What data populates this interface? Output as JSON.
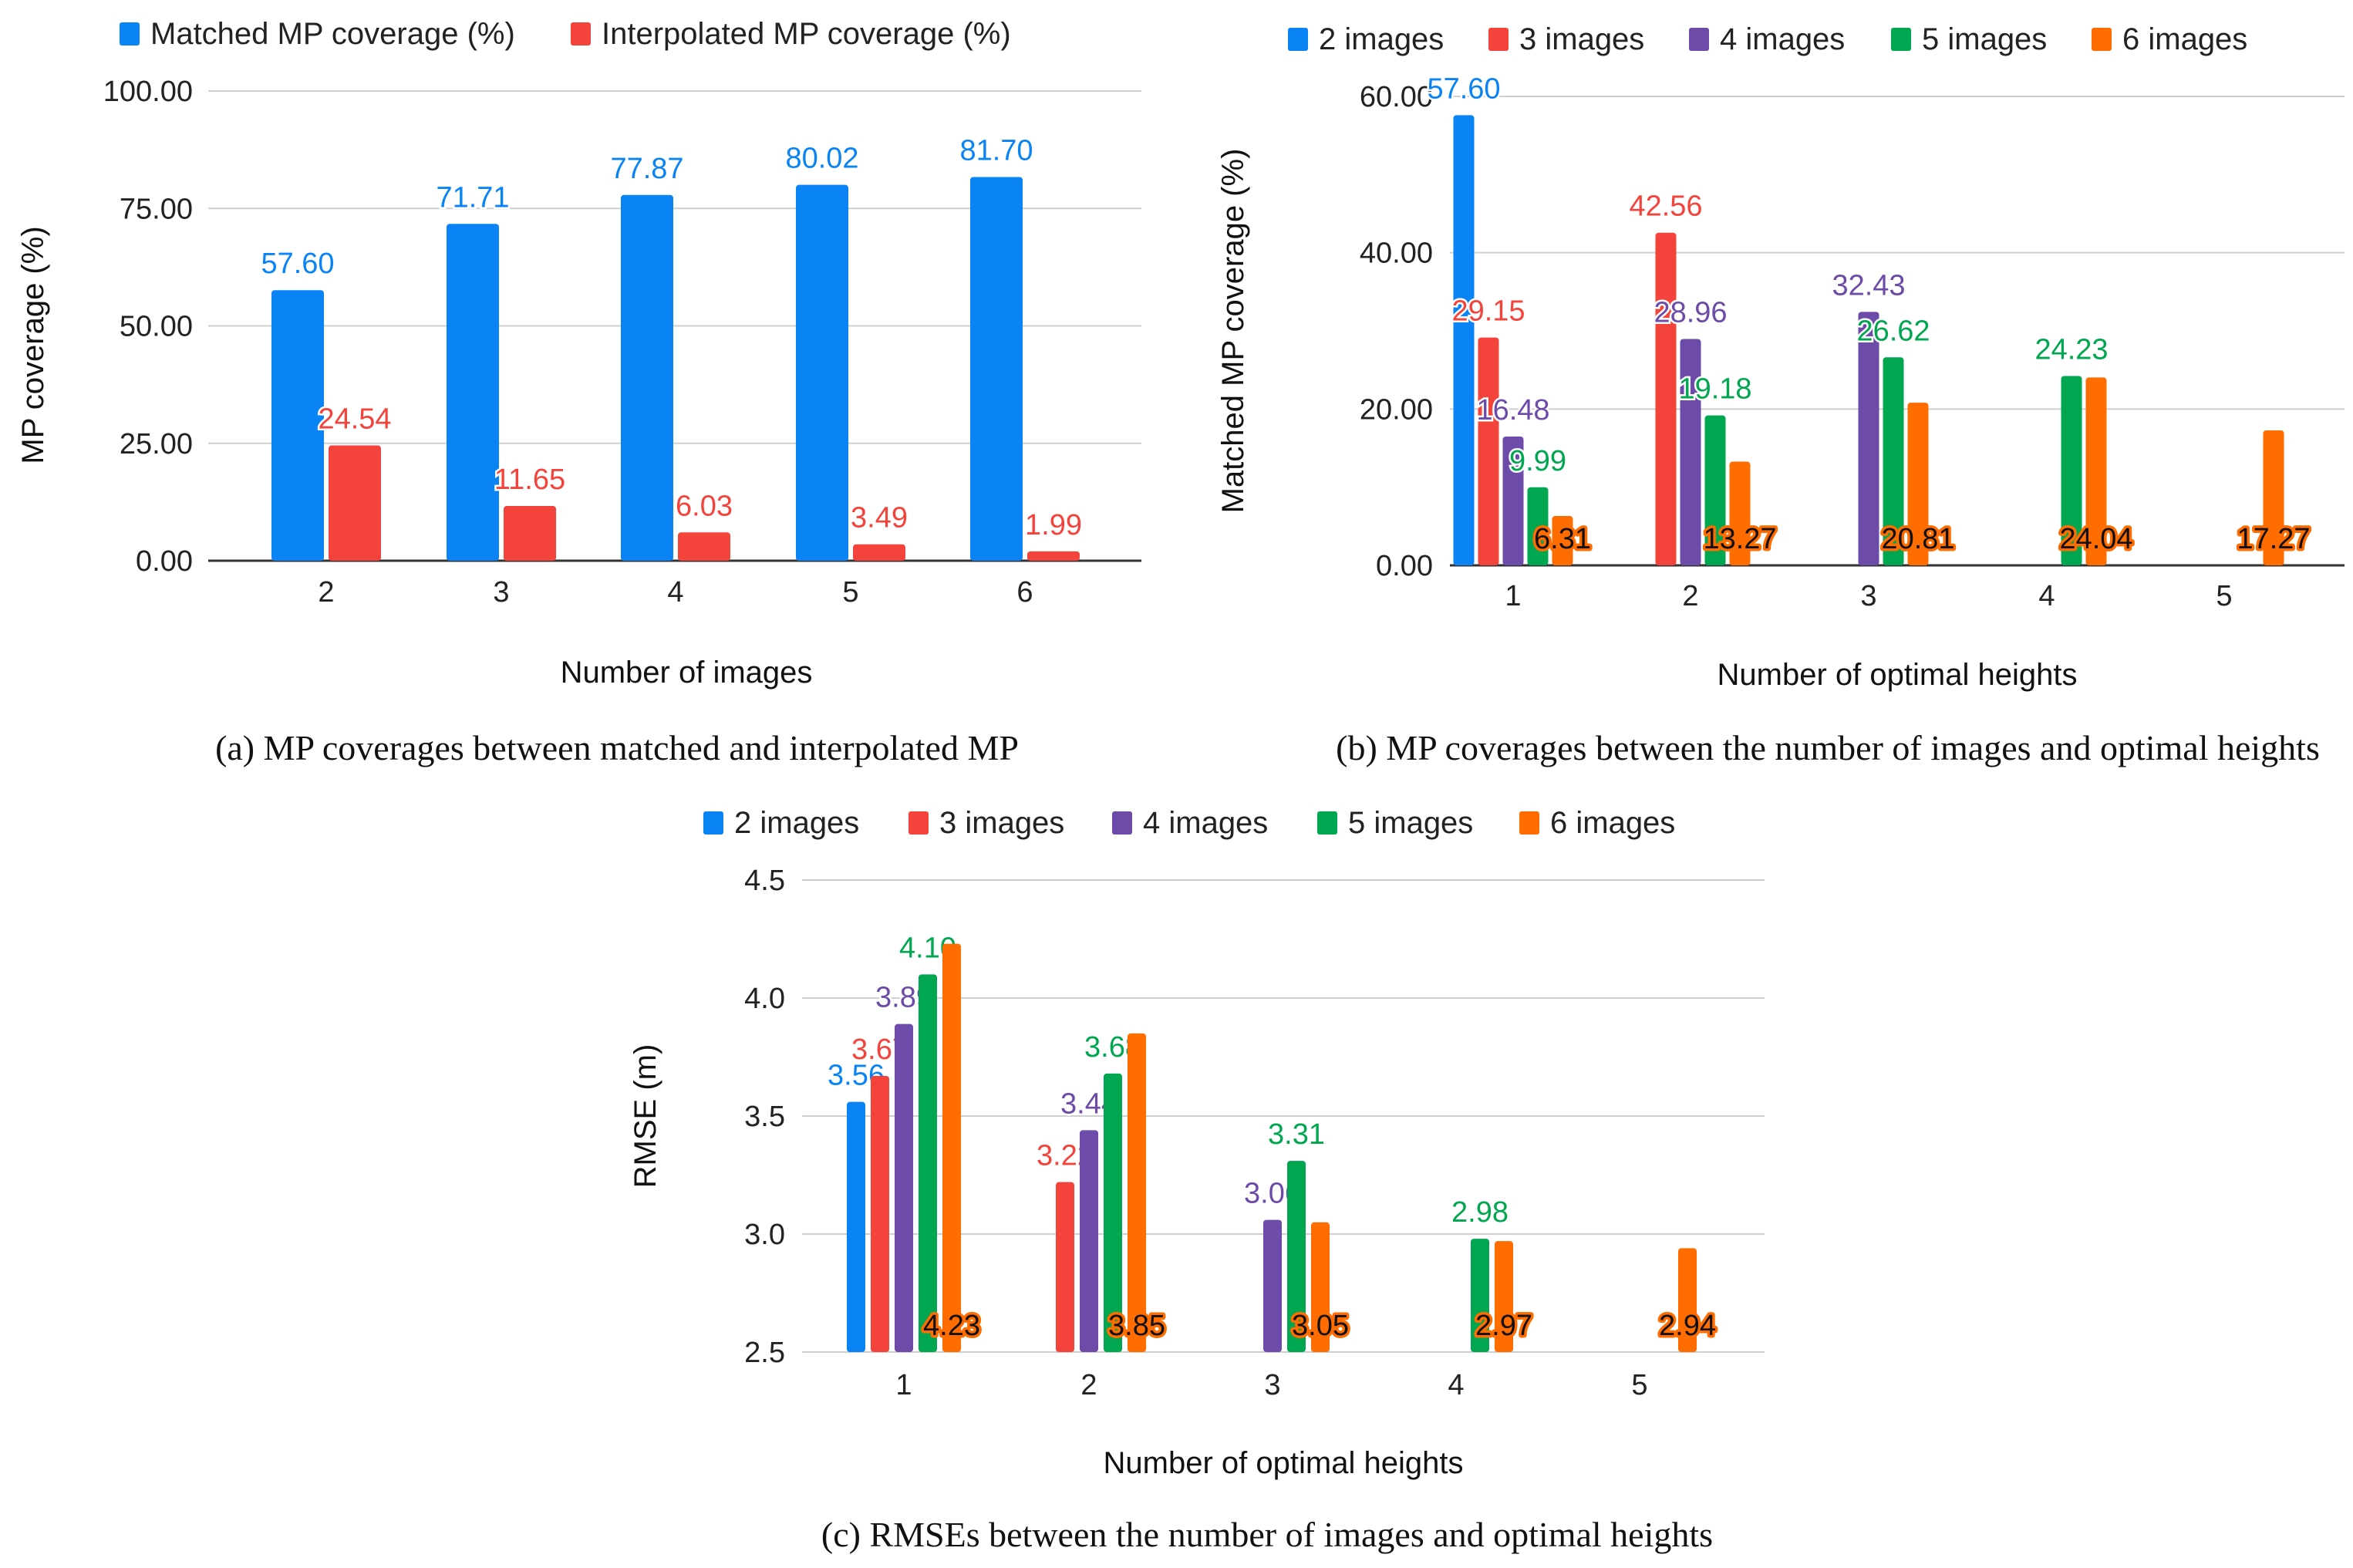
{
  "chart_data": [
    {
      "id": "a",
      "type": "bar",
      "caption": "(a) MP coverages between matched and interpolated MP",
      "xlabel": "Number of images",
      "ylabel": "MP coverage (%)",
      "ylim": [
        0,
        100
      ],
      "yticks": [
        "0.00",
        "25.00",
        "50.00",
        "75.00",
        "100.00"
      ],
      "ytick_values": [
        0,
        25,
        50,
        75,
        100
      ],
      "categories": [
        "2",
        "3",
        "4",
        "5",
        "6"
      ],
      "legend_position": "top-left",
      "grid": true,
      "series": [
        {
          "name": "Matched MP coverage (%)",
          "color": "#0a84f5",
          "values": [
            57.6,
            71.71,
            77.87,
            80.02,
            81.7
          ],
          "labels": [
            "57.60",
            "71.71",
            "77.87",
            "80.02",
            "81.70"
          ]
        },
        {
          "name": "Interpolated MP coverage (%)",
          "color": "#f4433a",
          "values": [
            24.54,
            11.65,
            6.03,
            3.49,
            1.99
          ],
          "labels": [
            "24.54",
            "11.65",
            "6.03",
            "3.49",
            "1.99"
          ]
        }
      ]
    },
    {
      "id": "b",
      "type": "bar",
      "caption": "(b) MP coverages between the number of images and optimal heights",
      "xlabel": "Number of optimal heights",
      "ylabel": "Matched MP coverage (%)",
      "ylim": [
        0,
        60
      ],
      "yticks": [
        "0.00",
        "20.00",
        "40.00",
        "60.00"
      ],
      "ytick_values": [
        0,
        20,
        40,
        60
      ],
      "categories": [
        "1",
        "2",
        "3",
        "4",
        "5"
      ],
      "legend_position": "top",
      "grid": true,
      "series": [
        {
          "name": "2 images",
          "color": "#0a84f5",
          "values": [
            57.6,
            null,
            null,
            null,
            null
          ],
          "labels": [
            "57.60",
            null,
            null,
            null,
            null
          ]
        },
        {
          "name": "3 images",
          "color": "#f4433a",
          "values": [
            29.15,
            42.56,
            null,
            null,
            null
          ],
          "labels": [
            "29.15",
            "42.56",
            null,
            null,
            null
          ]
        },
        {
          "name": "4 images",
          "color": "#6d4ba8",
          "values": [
            16.48,
            28.96,
            32.43,
            null,
            null
          ],
          "labels": [
            "16.48",
            "28.96",
            "32.43",
            null,
            null
          ]
        },
        {
          "name": "5 images",
          "color": "#00a650",
          "values": [
            9.99,
            19.18,
            26.62,
            24.23,
            null
          ],
          "labels": [
            "9.99",
            "19.18",
            "26.62",
            "24.23",
            null
          ]
        },
        {
          "name": "6 images",
          "color": "#ff6d00",
          "values": [
            6.31,
            13.27,
            20.81,
            24.04,
            17.27
          ],
          "labels": [
            "6.31",
            "13.27",
            "20.81",
            "24.04",
            "17.27"
          ]
        }
      ]
    },
    {
      "id": "c",
      "type": "bar",
      "caption": "(c) RMSEs between the number of images and optimal heights",
      "xlabel": "Number of optimal heights",
      "ylabel": "RMSE (m)",
      "ylim": [
        2.5,
        4.5
      ],
      "yticks": [
        "2.5",
        "3.0",
        "3.5",
        "4.0",
        "4.5"
      ],
      "ytick_values": [
        2.5,
        3.0,
        3.5,
        4.0,
        4.5
      ],
      "categories": [
        "1",
        "2",
        "3",
        "4",
        "5"
      ],
      "legend_position": "top",
      "grid": true,
      "series": [
        {
          "name": "2 images",
          "color": "#0a84f5",
          "values": [
            3.56,
            null,
            null,
            null,
            null
          ],
          "labels": [
            "3.56",
            null,
            null,
            null,
            null
          ]
        },
        {
          "name": "3 images",
          "color": "#f4433a",
          "values": [
            3.67,
            3.22,
            null,
            null,
            null
          ],
          "labels": [
            "3.67",
            "3.22",
            null,
            null,
            null
          ]
        },
        {
          "name": "4 images",
          "color": "#6d4ba8",
          "values": [
            3.89,
            3.44,
            3.06,
            null,
            null
          ],
          "labels": [
            "3.89",
            "3.44",
            "3.06",
            null,
            null
          ]
        },
        {
          "name": "5 images",
          "color": "#00a650",
          "values": [
            4.1,
            3.68,
            3.31,
            2.98,
            null
          ],
          "labels": [
            "4.10",
            "3.68",
            "3.31",
            "2.98",
            null
          ]
        },
        {
          "name": "6 images",
          "color": "#ff6d00",
          "values": [
            4.23,
            3.85,
            3.05,
            2.97,
            2.94
          ],
          "labels": [
            "4.23",
            "3.85",
            "3.05",
            "2.97",
            "2.94"
          ]
        }
      ]
    }
  ]
}
